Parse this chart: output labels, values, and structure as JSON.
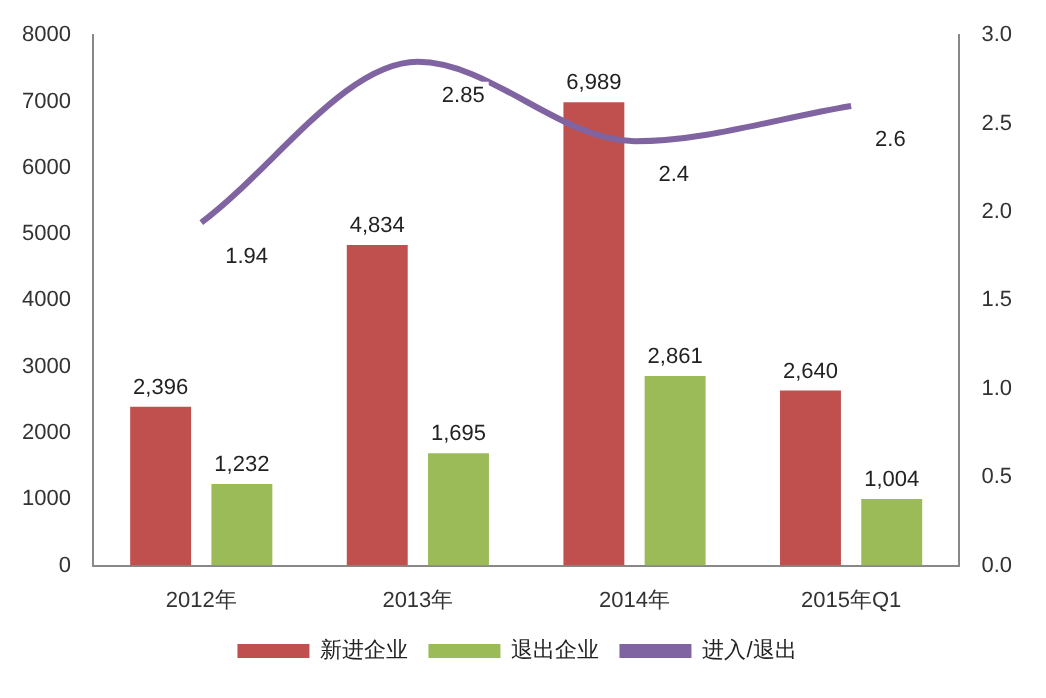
{
  "chart_data": {
    "type": "bar",
    "categories": [
      "2012年",
      "2013年",
      "2014年",
      "2015年Q1"
    ],
    "series": [
      {
        "name": "新进企业",
        "color": "#c0504d",
        "values": [
          2396,
          4834,
          6989,
          2640
        ],
        "value_labels": [
          "2,396",
          "4,834",
          "6,989",
          "2,640"
        ]
      },
      {
        "name": "退出企业",
        "color": "#9bbb59",
        "values": [
          1232,
          1695,
          2861,
          1004
        ],
        "value_labels": [
          "1,232",
          "1,695",
          "2,861",
          "1,004"
        ]
      },
      {
        "name": "进入/退出",
        "type": "line",
        "axis": "y2",
        "color": "#8064a2",
        "values": [
          1.94,
          2.85,
          2.4,
          2.6
        ],
        "value_labels": [
          "1.94",
          "2.85",
          "2.4",
          "2.6"
        ]
      }
    ],
    "ylim": [
      0,
      8000
    ],
    "yticks": [
      0,
      1000,
      2000,
      3000,
      4000,
      5000,
      6000,
      7000,
      8000
    ],
    "y2lim": [
      0,
      3
    ],
    "y2ticks": [
      {
        "value": 0,
        "label": "0.0"
      },
      {
        "value": 0.5,
        "label": "0.5"
      },
      {
        "value": 1,
        "label": "1.0"
      },
      {
        "value": 1.5,
        "label": "1.5"
      },
      {
        "value": 2,
        "label": "2.0"
      },
      {
        "value": 2.5,
        "label": "2.5"
      },
      {
        "value": 3,
        "label": "3.0"
      }
    ],
    "grid": false,
    "legend": "bottom",
    "marker": "none"
  }
}
